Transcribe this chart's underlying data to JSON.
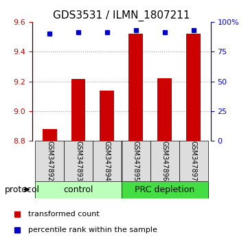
{
  "title": "GDS3531 / ILMN_1807211",
  "samples": [
    "GSM347892",
    "GSM347893",
    "GSM347894",
    "GSM347895",
    "GSM347896",
    "GSM347897"
  ],
  "transformed_count": [
    8.882,
    9.215,
    9.14,
    9.52,
    9.222,
    9.52
  ],
  "percentile_rank": [
    90,
    91,
    91,
    93,
    91,
    93
  ],
  "ylim_left": [
    8.8,
    9.6
  ],
  "ylim_right": [
    0,
    100
  ],
  "yticks_left": [
    8.8,
    9.0,
    9.2,
    9.4,
    9.6
  ],
  "yticks_right": [
    0,
    25,
    50,
    75,
    100
  ],
  "ytick_labels_right": [
    "0",
    "25",
    "50",
    "75",
    "100%"
  ],
  "bar_color": "#cc0000",
  "dot_color": "#0000cc",
  "bar_bottom": 8.8,
  "groups": [
    {
      "label": "control",
      "indices": [
        0,
        1,
        2
      ],
      "color": "#aaffaa"
    },
    {
      "label": "PRC depletion",
      "indices": [
        3,
        4,
        5
      ],
      "color": "#44dd44"
    }
  ],
  "group_bg_color": "#dddddd",
  "protocol_label": "protocol",
  "legend": [
    {
      "color": "#cc0000",
      "label": "transformed count"
    },
    {
      "color": "#0000cc",
      "label": "percentile rank within the sample"
    }
  ],
  "dotted_line_color": "#999999",
  "title_fontsize": 11,
  "tick_fontsize": 8,
  "legend_fontsize": 8,
  "group_label_fontsize": 9,
  "protocol_fontsize": 9
}
